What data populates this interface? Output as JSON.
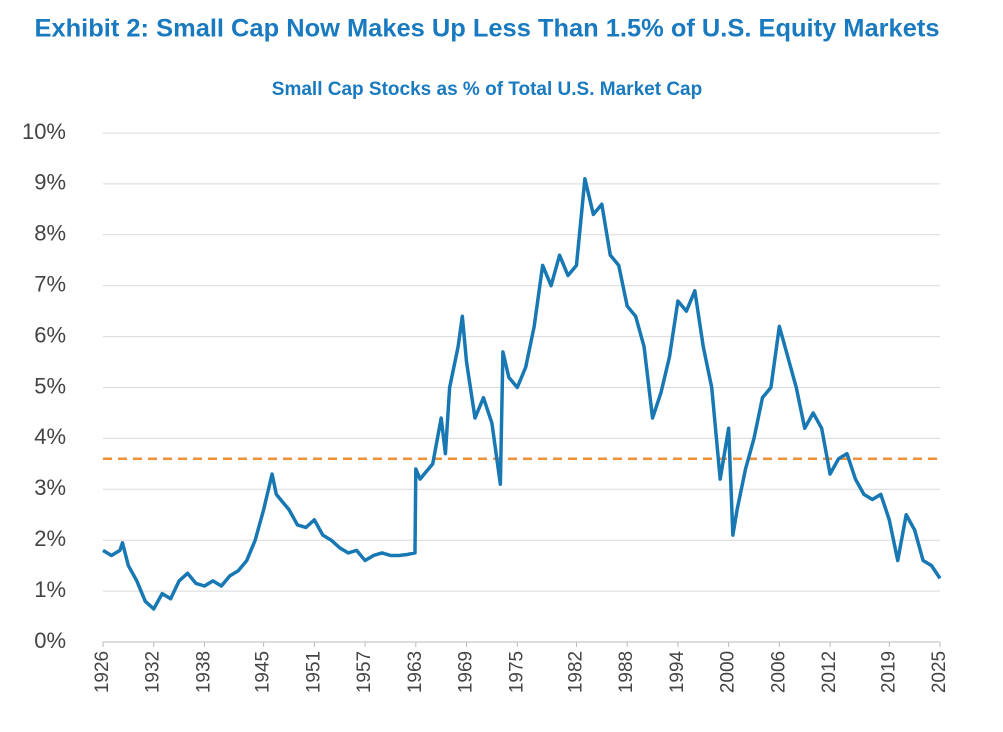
{
  "chart_data": {
    "type": "line",
    "title": "Exhibit 2:  Small Cap Now Makes Up Less Than 1.5% of U.S. Equity Markets",
    "subtitle": "Small Cap Stocks as % of Total U.S. Market Cap",
    "x": [
      1926,
      1927,
      1928,
      1928.3,
      1929,
      1930,
      1931,
      1932,
      1933,
      1934,
      1935,
      1936,
      1937,
      1938,
      1939,
      1940,
      1941,
      1942,
      1943,
      1944,
      1945,
      1946,
      1946.5,
      1947,
      1948,
      1949,
      1950,
      1951,
      1952,
      1953,
      1954,
      1955,
      1956,
      1957,
      1958,
      1959,
      1960,
      1961,
      1962,
      1962.9,
      1963,
      1963.5,
      1964,
      1965,
      1966,
      1966.5,
      1967,
      1968,
      1968.5,
      1969,
      1970,
      1971,
      1972,
      1973,
      1973.3,
      1974,
      1975,
      1976,
      1977,
      1978,
      1979,
      1980,
      1981,
      1982,
      1983,
      1984,
      1985,
      1986,
      1987,
      1988,
      1989,
      1990,
      1991,
      1992,
      1993,
      1994,
      1995,
      1996,
      1997,
      1998,
      1999,
      2000,
      2000.5,
      2001,
      2002,
      2003,
      2004,
      2005,
      2006,
      2007,
      2008,
      2009,
      2010,
      2011,
      2012,
      2013,
      2014,
      2015,
      2016,
      2017,
      2018,
      2019,
      2020,
      2021,
      2022,
      2023,
      2024,
      2025
    ],
    "series": [
      {
        "color": "#1778b3",
        "values": [
          1.8,
          1.7,
          1.8,
          1.95,
          1.5,
          1.2,
          0.8,
          0.65,
          0.95,
          0.85,
          1.2,
          1.35,
          1.15,
          1.1,
          1.2,
          1.1,
          1.3,
          1.4,
          1.6,
          2.0,
          2.6,
          3.3,
          2.9,
          2.8,
          2.6,
          2.3,
          2.25,
          2.4,
          2.1,
          2.0,
          1.85,
          1.75,
          1.8,
          1.6,
          1.7,
          1.75,
          1.7,
          1.7,
          1.72,
          1.75,
          3.4,
          3.2,
          3.3,
          3.5,
          4.4,
          3.7,
          5.0,
          5.8,
          6.4,
          5.5,
          4.4,
          4.8,
          4.3,
          3.1,
          5.7,
          5.2,
          5.0,
          5.4,
          6.2,
          7.4,
          7.0,
          7.6,
          7.2,
          7.4,
          9.1,
          8.4,
          8.6,
          7.6,
          7.4,
          6.6,
          6.4,
          5.8,
          4.4,
          4.9,
          5.6,
          6.7,
          6.5,
          6.9,
          5.8,
          5.0,
          3.2,
          4.2,
          2.1,
          2.6,
          3.4,
          4.0,
          4.8,
          5.0,
          6.2,
          5.6,
          5.0,
          4.2,
          4.5,
          4.2,
          3.3,
          3.6,
          3.7,
          3.2,
          2.9,
          2.8,
          2.9,
          2.4,
          1.6,
          2.5,
          2.2,
          1.6,
          1.5,
          1.25
        ]
      }
    ],
    "hline": {
      "value": 3.6,
      "color": "#f0903a"
    },
    "xlim": [
      1926,
      2025
    ],
    "xticks": [
      1926,
      1932,
      1938,
      1945,
      1951,
      1957,
      1963,
      1969,
      1975,
      1982,
      1988,
      1994,
      2000,
      2006,
      2012,
      2019,
      2025
    ],
    "ylim": [
      0,
      10
    ],
    "yticks": [
      {
        "value": 0,
        "label": "0%"
      },
      {
        "value": 1,
        "label": "1%"
      },
      {
        "value": 2,
        "label": "2%"
      },
      {
        "value": 3,
        "label": "3%"
      },
      {
        "value": 4,
        "label": "4%"
      },
      {
        "value": 5,
        "label": "5%"
      },
      {
        "value": 6,
        "label": "6%"
      },
      {
        "value": 7,
        "label": "7%"
      },
      {
        "value": 8,
        "label": "8%"
      },
      {
        "value": 9,
        "label": "9%"
      },
      {
        "value": 10,
        "label": "10%"
      }
    ],
    "grid": true
  }
}
